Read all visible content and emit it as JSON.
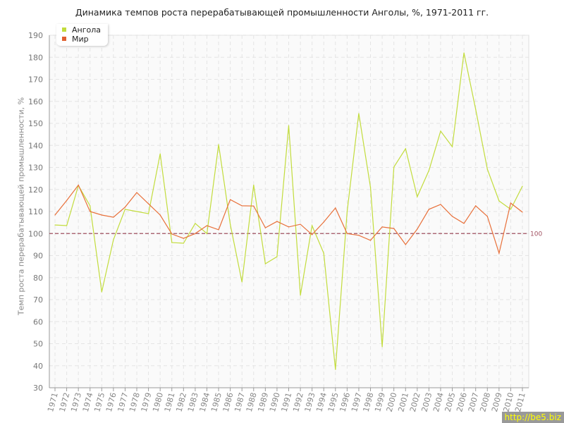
{
  "chart_data": {
    "type": "line",
    "title": "Динамика темпов роста перерабатывающей промышленности Анголы, %, 1971-2011 гг.",
    "xlabel": "",
    "ylabel": "Темп роста перерабатывающей промышленности, %",
    "ylim": [
      30,
      190
    ],
    "yticks": [
      30,
      40,
      50,
      60,
      70,
      80,
      90,
      100,
      110,
      120,
      130,
      140,
      150,
      160,
      170,
      180,
      190
    ],
    "grid": true,
    "legend_position": "top-left",
    "reference_line": {
      "value": 100,
      "label": "100",
      "color": "#a05060"
    },
    "x": [
      1971,
      1972,
      1973,
      1974,
      1975,
      1976,
      1977,
      1978,
      1979,
      1980,
      1981,
      1982,
      1983,
      1984,
      1985,
      1986,
      1987,
      1988,
      1989,
      1990,
      1991,
      1992,
      1993,
      1994,
      1995,
      1996,
      1997,
      1998,
      1999,
      2000,
      2001,
      2002,
      2003,
      2004,
      2005,
      2006,
      2007,
      2008,
      2009,
      2010,
      2011
    ],
    "series": [
      {
        "name": "Ангола",
        "color": "#c2dc3c",
        "values": [
          103.9,
          103.6,
          121.8,
          112.6,
          73.5,
          97.2,
          111,
          110,
          109,
          136.2,
          95.9,
          95.6,
          104.6,
          100,
          140.4,
          104.2,
          78,
          122,
          86.3,
          89.5,
          149,
          72,
          103.6,
          91.1,
          38.3,
          110,
          154.5,
          121,
          48.6,
          130.2,
          138.5,
          116.7,
          128.6,
          146.5,
          139.4,
          182,
          156.4,
          129.2,
          114.8,
          111,
          121.5
        ]
      },
      {
        "name": "Мир",
        "color": "#e8703a",
        "values": [
          108.4,
          115,
          122,
          110,
          108.4,
          107.4,
          112,
          118.6,
          113.5,
          108.4,
          99.8,
          97.8,
          100,
          103.6,
          101.7,
          115.4,
          112.6,
          112.5,
          102.6,
          105.5,
          103,
          104.2,
          99.5,
          105.2,
          111.6,
          100,
          99.2,
          96.9,
          103,
          102.3,
          95,
          102,
          111,
          113.2,
          107.8,
          104.6,
          112.6,
          107.8,
          91.1,
          113.8,
          109.7
        ]
      }
    ]
  },
  "watermark": "http://be5.biz"
}
